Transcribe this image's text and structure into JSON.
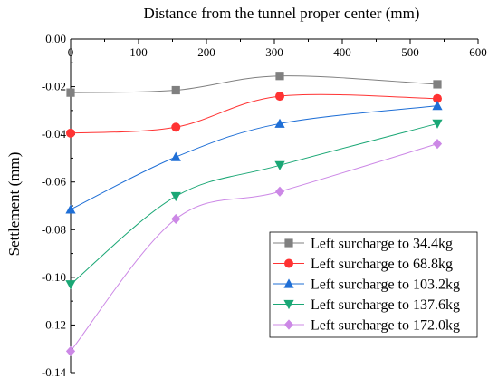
{
  "chart_data": {
    "type": "line",
    "title": "",
    "xlabel": "Distance from the tunnel proper center (mm)",
    "ylabel": "Settlement (mm)",
    "xlim": [
      0,
      600
    ],
    "ylim": [
      -0.14,
      0.0
    ],
    "x_ticks": [
      "0",
      "100",
      "200",
      "300",
      "400",
      "500",
      "600"
    ],
    "y_ticks": [
      "0.00",
      "-0.02",
      "-0.04",
      "-0.06",
      "-0.08",
      "-0.10",
      "-0.12",
      "-0.14"
    ],
    "x_axis_position": "top",
    "grid": false,
    "legend_position": "bottom-right",
    "x": [
      0,
      155,
      308,
      540
    ],
    "series": [
      {
        "name": "Left surcharge to 34.4kg",
        "marker": "square",
        "color": "#808080",
        "values": [
          -0.0225,
          -0.0215,
          -0.0155,
          -0.019
        ]
      },
      {
        "name": "Left surcharge to 68.8kg",
        "marker": "circle",
        "color": "#ff3333",
        "values": [
          -0.0395,
          -0.037,
          -0.024,
          -0.025
        ]
      },
      {
        "name": "Left surcharge to 103.2kg",
        "marker": "triangle-up",
        "color": "#1f6fd6",
        "values": [
          -0.0715,
          -0.0495,
          -0.0355,
          -0.028
        ]
      },
      {
        "name": "Left surcharge to 137.6kg",
        "marker": "triangle-down",
        "color": "#1aa775",
        "values": [
          -0.103,
          -0.066,
          -0.053,
          -0.0355
        ]
      },
      {
        "name": "Left surcharge to 172.0kg",
        "marker": "diamond",
        "color": "#cc88e6",
        "values": [
          -0.131,
          -0.0755,
          -0.064,
          -0.044
        ]
      }
    ]
  }
}
